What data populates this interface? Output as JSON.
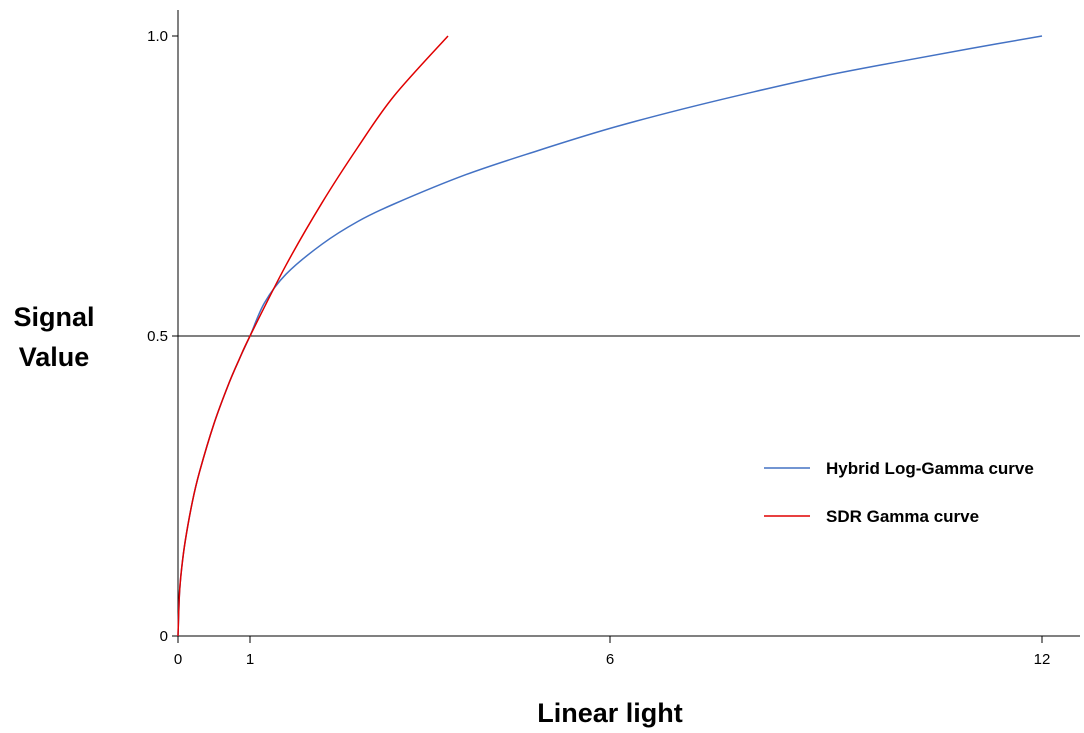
{
  "chart_data": {
    "type": "line",
    "xlabel": "Linear light",
    "ylabel_lines": [
      "Signal",
      "Value"
    ],
    "xlim": [
      0,
      12.5
    ],
    "ylim": [
      0,
      1.04
    ],
    "x_ticks": [
      0,
      1,
      6,
      12
    ],
    "x_tick_labels": [
      "0",
      "1",
      "6",
      "12"
    ],
    "y_ticks": [
      0,
      0.5,
      1.0
    ],
    "y_tick_labels": [
      "0",
      "0.5",
      "1.0"
    ],
    "reference_line_y": 0.5,
    "legend_position": "right",
    "series": [
      {
        "name": "Hybrid Log-Gamma curve",
        "color": "#4472c4",
        "x": [
          0,
          0.02,
          0.05,
          0.1,
          0.2,
          0.3,
          0.5,
          0.7,
          0.85,
          1.0,
          1.2,
          1.5,
          2,
          2.5,
          3,
          4,
          5,
          6,
          7,
          8,
          9,
          10,
          11,
          12
        ],
        "y": [
          0,
          0.07,
          0.112,
          0.158,
          0.224,
          0.274,
          0.354,
          0.419,
          0.461,
          0.5,
          0.555,
          0.603,
          0.653,
          0.691,
          0.72,
          0.769,
          0.809,
          0.846,
          0.878,
          0.907,
          0.934,
          0.957,
          0.979,
          1.0
        ]
      },
      {
        "name": "SDR Gamma curve",
        "color": "#e00000",
        "x": [
          0,
          0.02,
          0.05,
          0.1,
          0.2,
          0.3,
          0.5,
          0.7,
          0.85,
          1.0,
          1.5,
          2.0,
          2.5,
          3.0,
          3.75
        ],
        "y": [
          0,
          0.07,
          0.112,
          0.158,
          0.224,
          0.274,
          0.354,
          0.419,
          0.461,
          0.5,
          0.618,
          0.722,
          0.815,
          0.9,
          1.0
        ]
      }
    ]
  }
}
